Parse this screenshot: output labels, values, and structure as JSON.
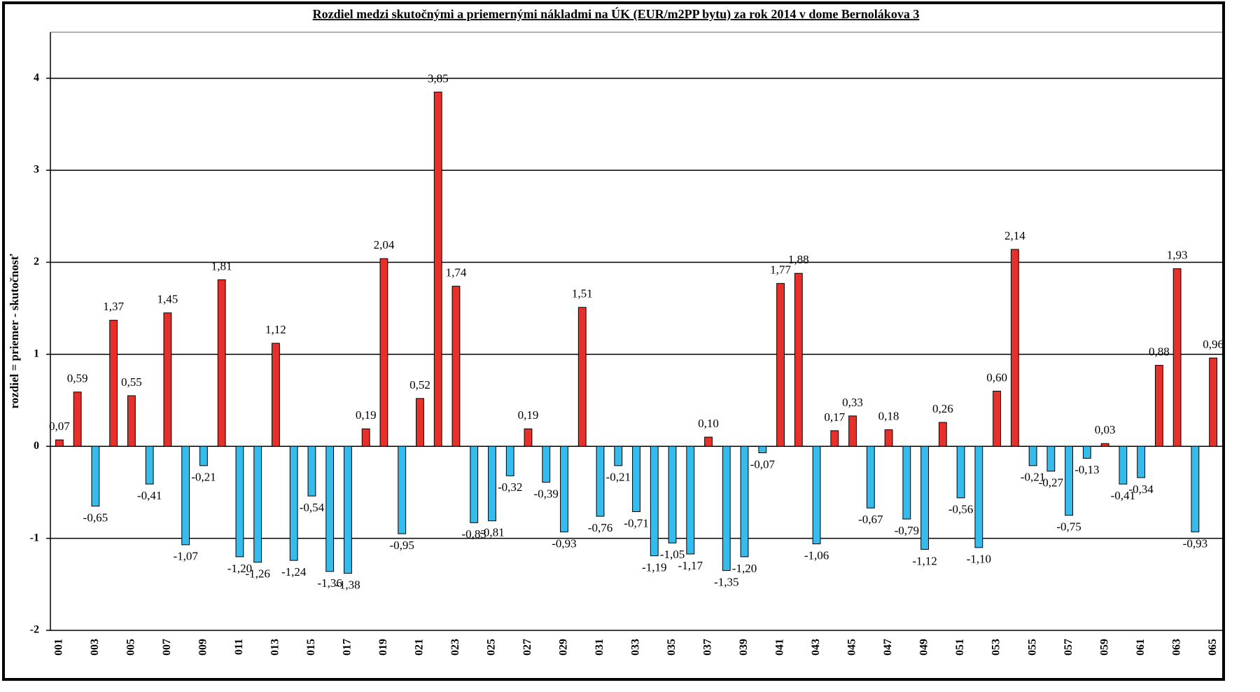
{
  "chart_data": {
    "type": "bar",
    "title": "Rozdiel medzi skutočnými a priemernými nákladmi na ÚK (EUR/m2PP bytu) za rok 2014 v dome Bernolákova 3",
    "y_label": "rozdiel = priemer - skutočnosť",
    "categories": [
      "001",
      null,
      "003",
      null,
      "005",
      null,
      "007",
      null,
      "009",
      null,
      "011",
      null,
      "013",
      null,
      "015",
      null,
      "017",
      null,
      "019",
      null,
      "021",
      null,
      "023",
      null,
      "025",
      null,
      "027",
      null,
      "029",
      null,
      "031",
      null,
      "033",
      null,
      "035",
      null,
      "037",
      null,
      "039",
      null,
      "041",
      null,
      "043",
      null,
      "045",
      null,
      "047",
      null,
      "049",
      null,
      "051",
      null,
      "053",
      null,
      "055",
      null,
      "057",
      null,
      "059",
      null,
      "061",
      null,
      "063",
      null,
      "065"
    ],
    "values": [
      0.07,
      0.59,
      -0.65,
      1.37,
      0.55,
      -0.41,
      1.45,
      -1.07,
      -0.21,
      1.81,
      -1.2,
      -1.26,
      1.12,
      -1.24,
      -0.54,
      -1.36,
      -1.38,
      0.19,
      2.04,
      -0.95,
      0.52,
      3.85,
      1.74,
      -0.83,
      -0.81,
      -0.32,
      0.19,
      -0.39,
      -0.93,
      1.51,
      -0.76,
      -0.21,
      -0.71,
      -1.19,
      -1.05,
      -1.17,
      0.1,
      -1.35,
      -1.2,
      -0.07,
      1.77,
      1.88,
      -1.06,
      0.17,
      0.33,
      -0.67,
      0.18,
      -0.79,
      -1.12,
      0.26,
      -0.56,
      -1.1,
      0.6,
      2.14,
      -0.21,
      -0.27,
      -0.75,
      -0.13,
      0.03,
      -0.41,
      -0.34,
      0.88,
      1.93,
      -0.93,
      0.96
    ],
    "value_labels": [
      "0,07",
      "0,59",
      "-0,65",
      "1,37",
      "0,55",
      "-0,41",
      "1,45",
      "-1,07",
      "-0,21",
      "1,81",
      "-1,20",
      "-1,26",
      "1,12",
      "-1,24",
      "-0,54",
      "-1,36",
      "-1,38",
      "0,19",
      "2,04",
      "-0,95",
      "0,52",
      "3,85",
      "1,74",
      "-0,83",
      "-0,81",
      "-0,32",
      "0,19",
      "-0,39",
      "-0,93",
      "1,51",
      "-0,76",
      "-0,21",
      "-0,71",
      "-1,19",
      "-1,05",
      "-1,17",
      "0,10",
      "-1,35",
      "-1,20",
      "-0,07",
      "1,77",
      "1,88",
      "-1,06",
      "0,17",
      "0,33",
      "-0,67",
      "0,18",
      "-0,79",
      "-1,12",
      "0,26",
      "-0,56",
      "-1,10",
      "0,60",
      "2,14",
      "-0,21",
      "-0,27",
      "-0,75",
      "-0,13",
      "0,03",
      "-0,41",
      "-0,34",
      "0,88",
      "1,93",
      "-0,93",
      "0,96"
    ],
    "positive_color": "#e8302a",
    "negative_color": "#35bcec",
    "ylim": [
      -2,
      4.5
    ],
    "yticks": [
      -2,
      -1,
      0,
      1,
      2,
      3,
      4
    ],
    "grid": true
  }
}
